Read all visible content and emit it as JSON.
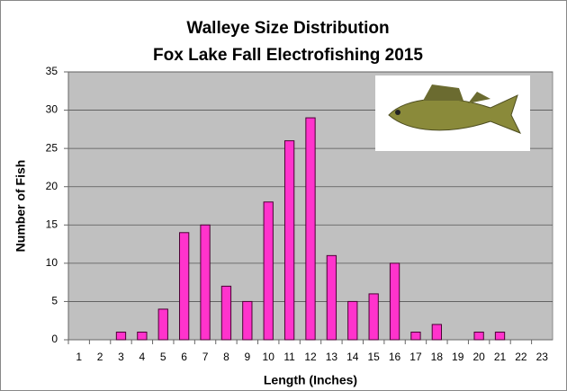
{
  "chart_data": {
    "type": "bar",
    "title": "Walleye Size Distribution",
    "subtitle": "Fox Lake Fall Electrofishing 2015",
    "x_label": "Length (Inches)",
    "y_label": "Number of Fish",
    "categories": [
      "1",
      "2",
      "3",
      "4",
      "5",
      "6",
      "7",
      "8",
      "9",
      "10",
      "11",
      "12",
      "13",
      "14",
      "15",
      "16",
      "17",
      "18",
      "19",
      "20",
      "21",
      "22",
      "23"
    ],
    "values": [
      0,
      0,
      1,
      1,
      4,
      14,
      15,
      7,
      5,
      18,
      26,
      29,
      11,
      5,
      6,
      10,
      1,
      2,
      0,
      1,
      1,
      0,
      0
    ],
    "color": "#ff33cc",
    "ylim": [
      0,
      35
    ],
    "yticks": [
      0,
      5,
      10,
      15,
      20,
      25,
      30,
      35
    ],
    "grid": true
  }
}
